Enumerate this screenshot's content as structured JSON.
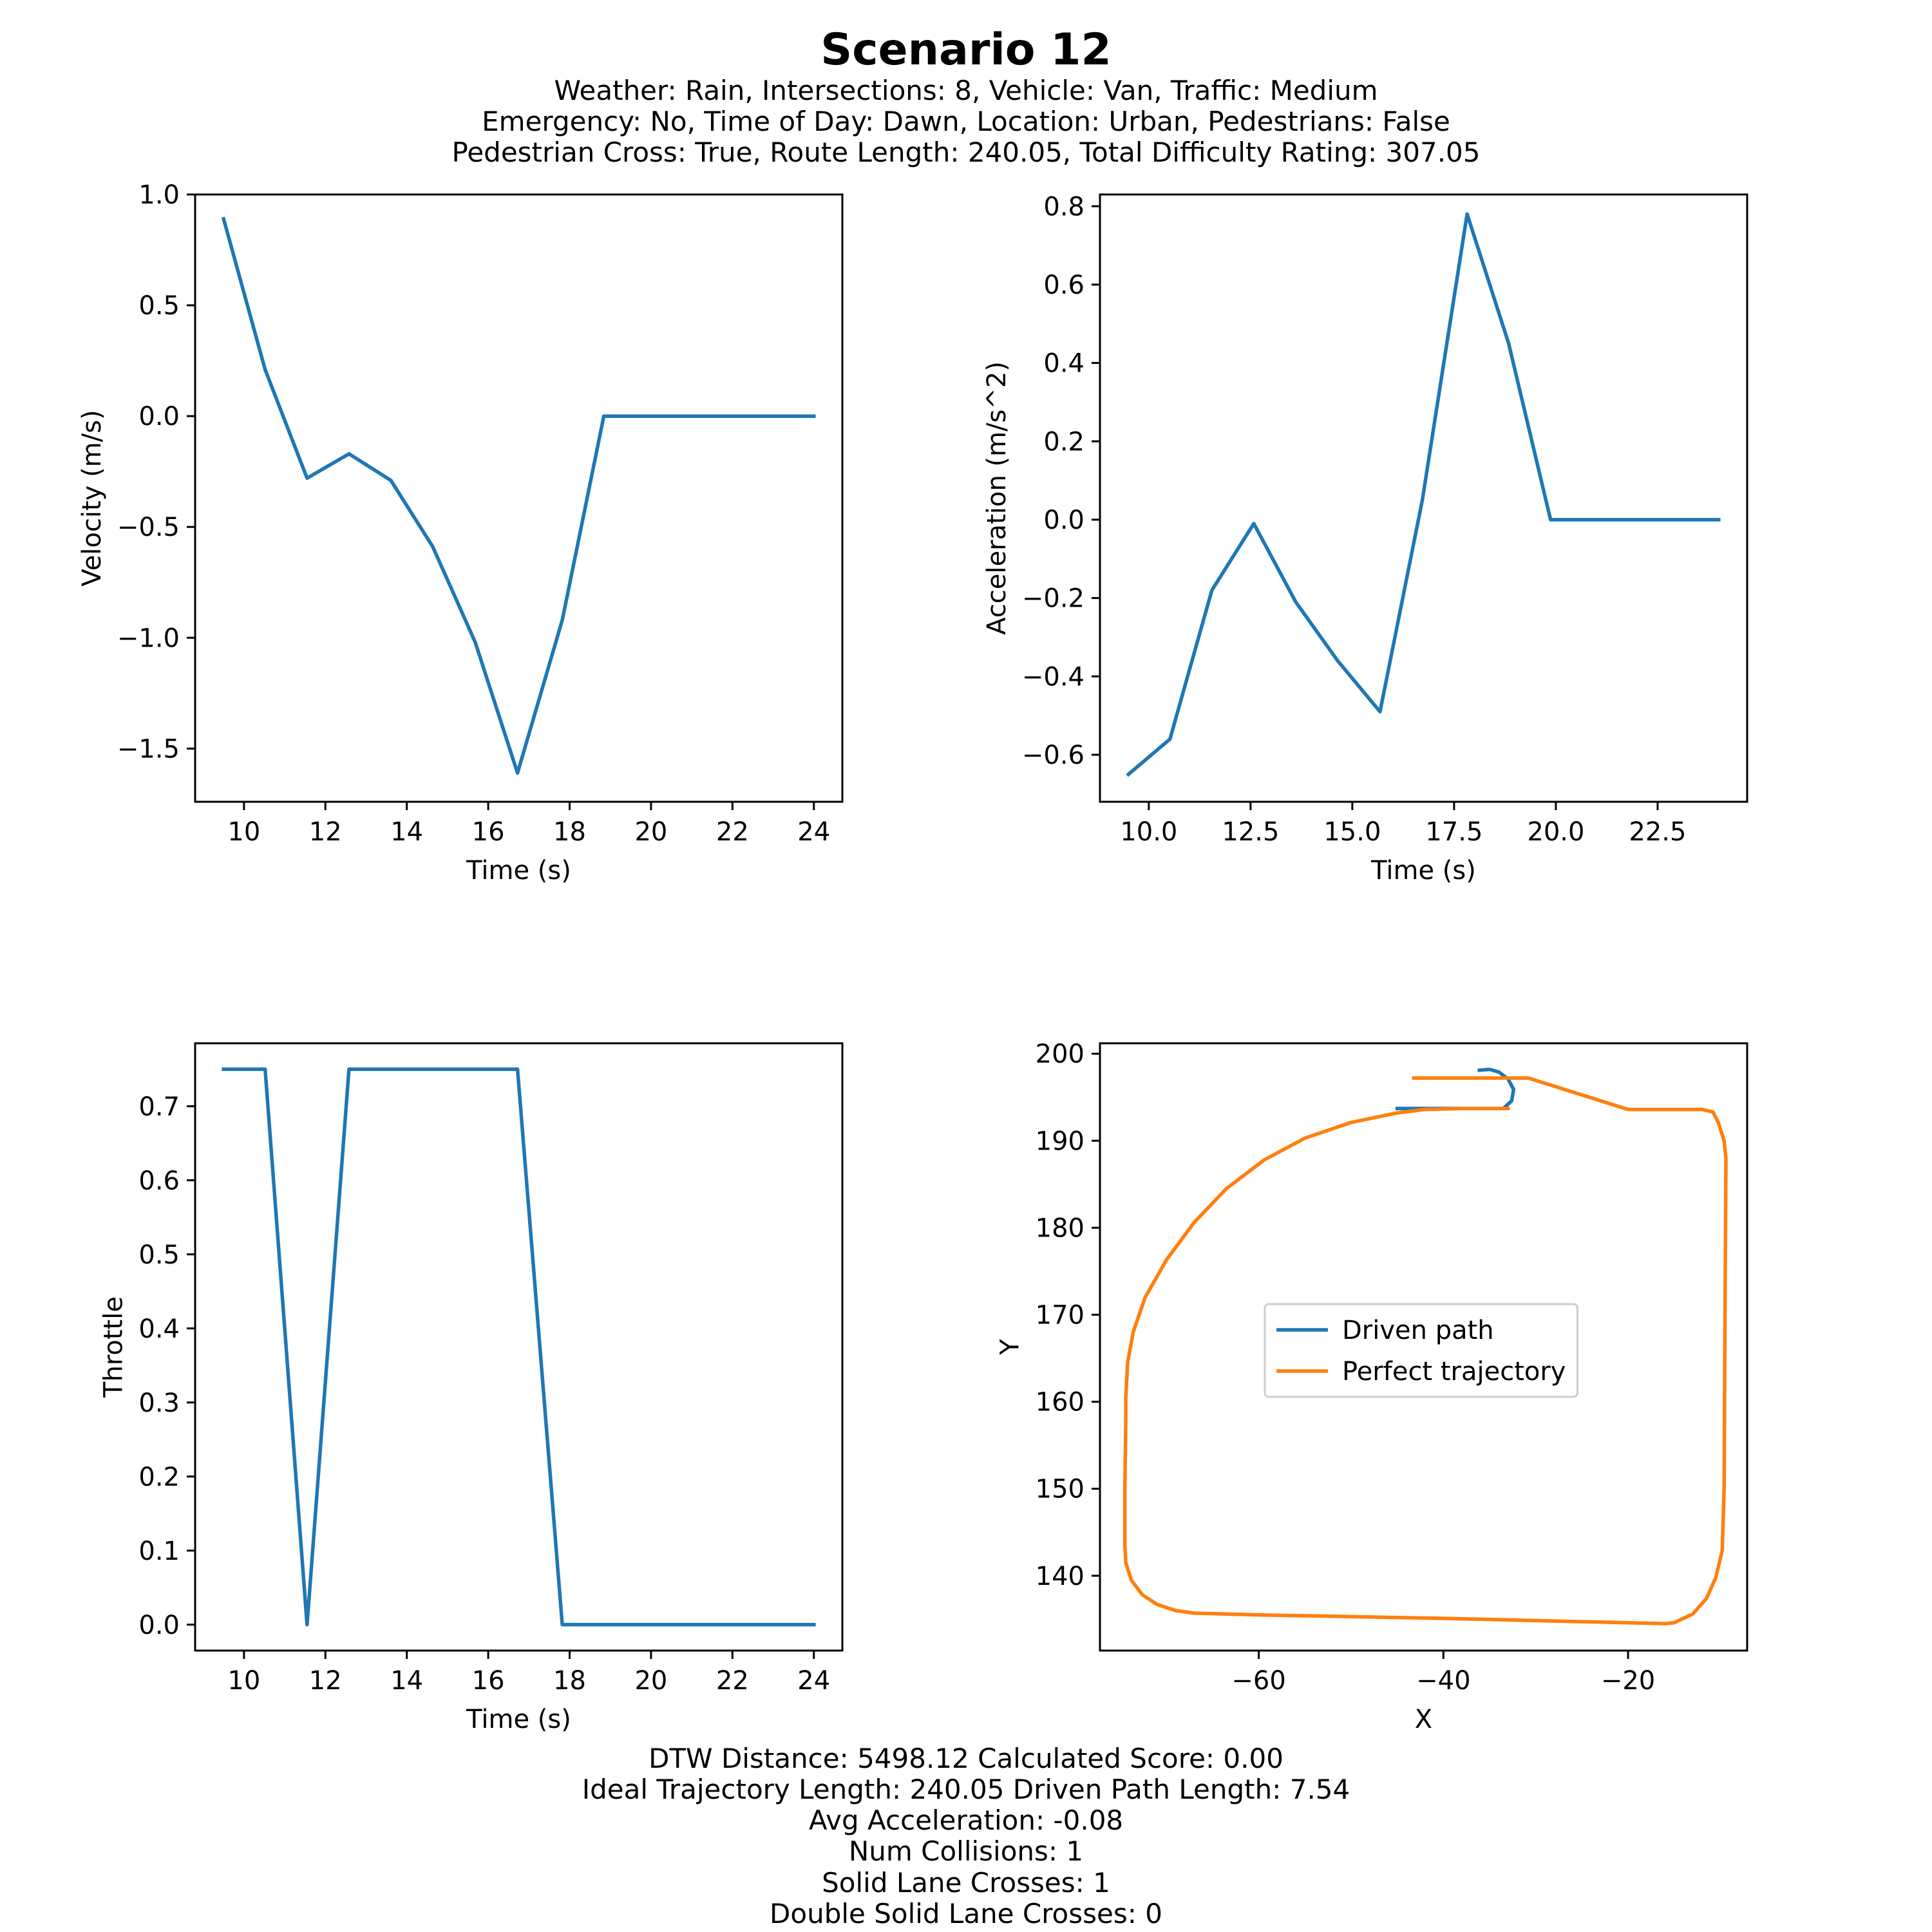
{
  "figure": {
    "title": "Scenario 12",
    "subtitle_lines": [
      "Weather: Rain, Intersections: 8, Vehicle: Van, Traffic: Medium",
      "Emergency: No, Time of Day: Dawn, Location: Urban, Pedestrians: False",
      "Pedestrian Cross: True, Route Length: 240.05, Total Difficulty Rating: 307.05"
    ],
    "footer_lines": [
      "DTW Distance: 5498.12  Calculated Score: 0.00",
      "Ideal Trajectory Length: 240.05   Driven Path Length: 7.54",
      "Avg Acceleration: -0.08",
      "Num Collisions: 1",
      "Solid Lane Crosses: 1",
      "Double Solid Lane Crosses: 0"
    ]
  },
  "colors": {
    "blue": "#1f77b4",
    "orange": "#ff7f0e"
  },
  "chart_data": [
    {
      "type": "line",
      "xlabel": "Time (s)",
      "ylabel": "Velocity (m/s)",
      "xlim": [
        8.8,
        24.7
      ],
      "ylim": [
        -1.74,
        1.0
      ],
      "xticks": [
        10,
        12,
        14,
        16,
        18,
        20,
        22,
        24
      ],
      "xtick_labels": [
        "10",
        "12",
        "14",
        "16",
        "18",
        "20",
        "22",
        "24"
      ],
      "yticks": [
        1.0,
        0.5,
        0.0,
        -0.5,
        -1.0,
        -1.5
      ],
      "ytick_labels": [
        "1.0",
        "0.5",
        "0.0",
        "−0.5",
        "−1.0",
        "−1.5"
      ],
      "series": [
        {
          "color": "blue",
          "x": [
            9.5,
            10.52,
            11.55,
            12.58,
            13.61,
            14.64,
            15.68,
            16.72,
            17.82,
            18.84,
            19.87,
            24.0
          ],
          "y": [
            0.89,
            0.21,
            -0.28,
            -0.17,
            -0.29,
            -0.59,
            -1.02,
            -1.61,
            -0.92,
            0.0,
            0.0,
            0.0
          ]
        }
      ]
    },
    {
      "type": "line",
      "xlabel": "Time (s)",
      "ylabel": "Acceleration (m/s^2)",
      "xlim": [
        8.8,
        24.7
      ],
      "ylim": [
        -0.72,
        0.83
      ],
      "xticks": [
        10.0,
        12.5,
        15.0,
        17.5,
        20.0,
        22.5
      ],
      "xtick_labels": [
        "10.0",
        "12.5",
        "15.0",
        "17.5",
        "20.0",
        "22.5"
      ],
      "yticks": [
        0.8,
        0.6,
        0.4,
        0.2,
        0.0,
        -0.2,
        -0.4,
        -0.6
      ],
      "ytick_labels": [
        "0.8",
        "0.6",
        "0.4",
        "0.2",
        "0.0",
        "−0.2",
        "−0.4",
        "−0.6"
      ],
      "series": [
        {
          "color": "blue",
          "x": [
            9.5,
            10.52,
            11.55,
            12.58,
            13.61,
            14.64,
            15.68,
            16.72,
            17.82,
            18.84,
            19.87,
            24.0
          ],
          "y": [
            -0.65,
            -0.56,
            -0.18,
            -0.01,
            -0.21,
            -0.36,
            -0.49,
            0.05,
            0.78,
            0.45,
            0.0,
            0.0
          ]
        }
      ]
    },
    {
      "type": "line",
      "xlabel": "Time (s)",
      "ylabel": "Throttle",
      "xlim": [
        8.8,
        24.7
      ],
      "ylim": [
        -0.035,
        0.785
      ],
      "xticks": [
        10,
        12,
        14,
        16,
        18,
        20,
        22,
        24
      ],
      "xtick_labels": [
        "10",
        "12",
        "14",
        "16",
        "18",
        "20",
        "22",
        "24"
      ],
      "yticks": [
        0.7,
        0.6,
        0.5,
        0.4,
        0.3,
        0.2,
        0.1,
        0.0
      ],
      "ytick_labels": [
        "0.7",
        "0.6",
        "0.5",
        "0.4",
        "0.3",
        "0.2",
        "0.1",
        "0.0"
      ],
      "series": [
        {
          "color": "blue",
          "x": [
            9.5,
            10.52,
            11.55,
            12.58,
            13.61,
            14.64,
            15.68,
            16.72,
            17.82,
            18.84,
            19.87,
            24.0
          ],
          "y": [
            0.75,
            0.75,
            0.0,
            0.75,
            0.75,
            0.75,
            0.75,
            0.75,
            0.0,
            0.0,
            0.0,
            0.0
          ]
        }
      ]
    },
    {
      "type": "line",
      "xlabel": "X",
      "ylabel": "Y",
      "xlim": [
        -77.2,
        -7.1
      ],
      "ylim": [
        131.4,
        201.2
      ],
      "xticks": [
        -60,
        -40,
        -20
      ],
      "xtick_labels": [
        "−60",
        "−40",
        "−20"
      ],
      "yticks": [
        200,
        190,
        180,
        170,
        160,
        150,
        140
      ],
      "ytick_labels": [
        "200",
        "190",
        "180",
        "170",
        "160",
        "150",
        "140"
      ],
      "legend": {
        "position": "center"
      },
      "series": [
        {
          "name": "Driven path",
          "color": "blue",
          "x": [
            -36.1,
            -35.0,
            -34.0,
            -33.0,
            -32.4,
            -32.6,
            -33.5,
            -36.0,
            -40.0,
            -45.0
          ],
          "y": [
            198.1,
            198.2,
            197.9,
            197.1,
            195.9,
            194.6,
            193.7,
            193.7,
            193.7,
            193.7
          ]
        },
        {
          "name": "Perfect trajectory",
          "color": "orange",
          "x": [
            -43.2,
            -36.0,
            -30.8,
            -20.0,
            -12.0,
            -10.8,
            -10.2,
            -9.6,
            -9.4,
            -9.5,
            -9.6,
            -9.8,
            -10.5,
            -11.5,
            -13.0,
            -15.0,
            -16.0,
            -20.0,
            -40.0,
            -60.0,
            -67.0,
            -69.0,
            -71.0,
            -72.6,
            -73.8,
            -74.4,
            -74.5,
            -74.5,
            -74.4,
            -74.4,
            -74.2,
            -73.6,
            -72.3,
            -70.0,
            -67.0,
            -63.5,
            -59.4,
            -55.0,
            -50.0,
            -45.0,
            -42.0,
            -38.0,
            -33.0
          ],
          "y": [
            197.2,
            197.2,
            197.2,
            193.6,
            193.6,
            193.3,
            192.0,
            190.0,
            188.0,
            170.0,
            150.0,
            142.9,
            139.8,
            137.4,
            135.6,
            134.6,
            134.5,
            134.6,
            135.1,
            135.5,
            135.7,
            136.0,
            136.7,
            137.8,
            139.5,
            141.5,
            143.5,
            150.0,
            158.0,
            160.5,
            164.5,
            168.0,
            172.0,
            176.3,
            180.6,
            184.5,
            187.8,
            190.3,
            192.1,
            193.2,
            193.6,
            193.7,
            193.7
          ]
        }
      ]
    }
  ]
}
